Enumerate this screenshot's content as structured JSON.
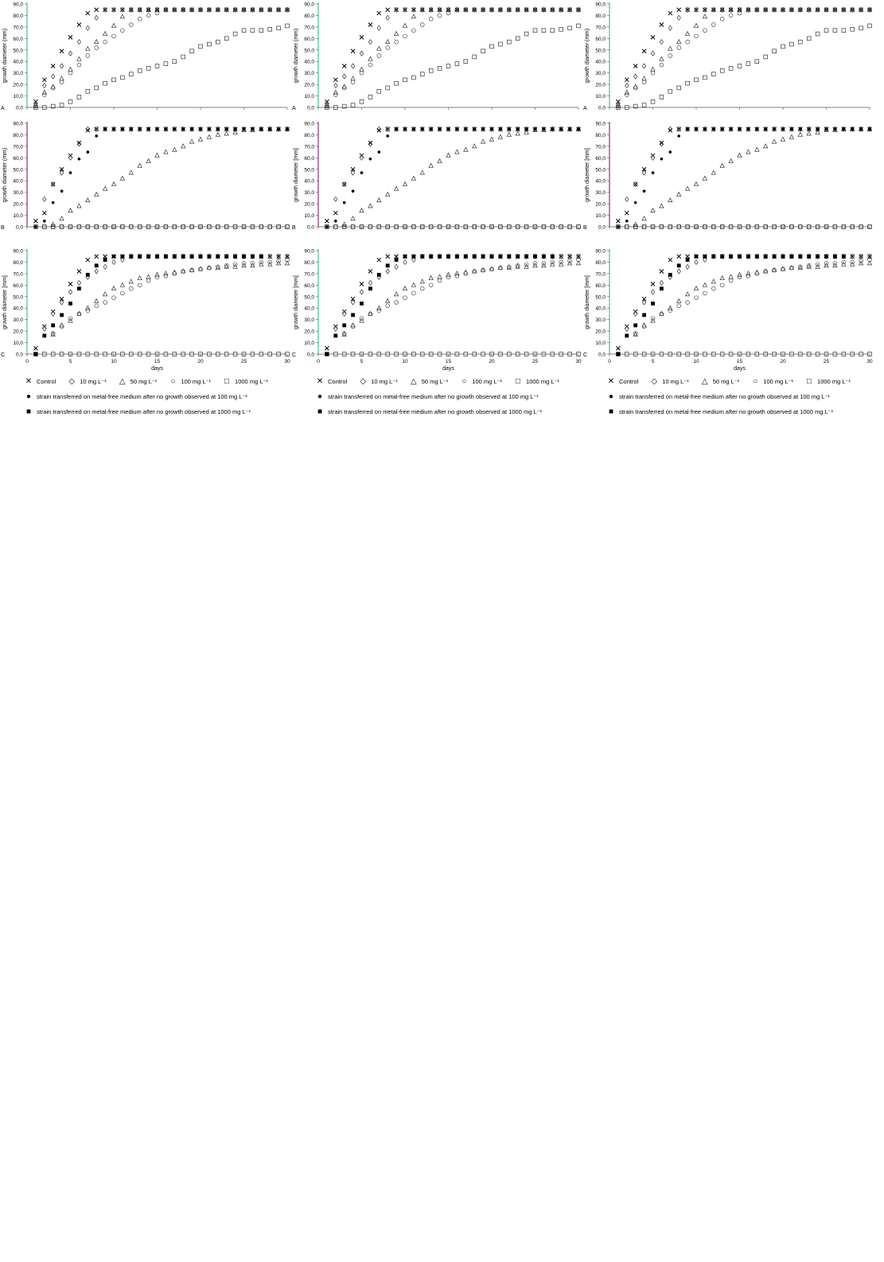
{
  "chart_data": {
    "type": "scatter",
    "layout": "3x3 grid",
    "xlabel": "days",
    "ylabel": "growth diameter (mm)",
    "ylabel_variant": "growth diameter [mm]",
    "xlim": [
      0,
      30
    ],
    "ylim": [
      0,
      90
    ],
    "xticks": [
      "0",
      "5",
      "10",
      "15",
      "20",
      "25",
      "30"
    ],
    "yticks": [
      "0,0",
      "10,0",
      "20,0",
      "30,0",
      "40,0",
      "50,0",
      "60,0",
      "70,0",
      "80,0",
      "90,0"
    ],
    "row_labels": [
      "A",
      "B",
      "C"
    ],
    "frame_colors": [
      "#3cc98a",
      "#9c2a7e",
      "#3cc98a"
    ],
    "legend": {
      "items": [
        {
          "symbol": "x-icon",
          "label": "Control"
        },
        {
          "symbol": "diamond-icon",
          "label": "10 mg L⁻¹"
        },
        {
          "symbol": "triangle-icon",
          "label": "50 mg L⁻¹"
        },
        {
          "symbol": "circle-icon",
          "label": "100 mg L⁻¹"
        },
        {
          "symbol": "square-open-icon",
          "label": "1000 mg L⁻¹"
        }
      ],
      "transfer_100": "strain transferred on metal-free medium after no growth observed at 100 mg L⁻¹",
      "transfer_1000": "strain transferred on metal-free medium after no growth observed at 1000 mg L⁻¹"
    },
    "rows": [
      {
        "label": "A",
        "x": [
          1,
          2,
          3,
          4,
          5,
          6,
          7,
          8,
          9,
          10,
          11,
          12,
          13,
          14,
          15,
          16,
          17,
          18,
          19,
          20,
          21,
          22,
          23,
          24,
          25,
          26,
          27,
          28,
          29,
          30
        ],
        "series": [
          {
            "name": "Control",
            "marker": "x",
            "values": [
              5,
              24,
              36,
              49,
              61,
              72,
              82,
              85,
              85,
              85,
              85,
              85,
              85,
              85,
              85,
              85,
              85,
              85,
              85,
              85,
              85,
              85,
              85,
              85,
              85,
              85,
              85,
              85,
              85,
              85
            ]
          },
          {
            "name": "10 mg L⁻¹",
            "marker": "diamond",
            "values": [
              3,
              19,
              27,
              36,
              47,
              57,
              69,
              78,
              85,
              85,
              85,
              85,
              85,
              85,
              85,
              85,
              85,
              85,
              85,
              85,
              85,
              85,
              85,
              85,
              85,
              85,
              85,
              85,
              85,
              85
            ]
          },
          {
            "name": "50 mg L⁻¹",
            "marker": "triangle",
            "values": [
              2,
              13,
              18,
              25,
              33,
              42,
              51,
              57,
              64,
              71,
              79,
              85,
              85,
              85,
              85,
              85,
              85,
              85,
              85,
              85,
              85,
              85,
              85,
              85,
              85,
              85,
              85,
              85,
              85,
              85
            ]
          },
          {
            "name": "100 mg L⁻¹",
            "marker": "circle",
            "values": [
              1,
              11,
              17,
              22,
              30,
              37,
              45,
              52,
              57,
              62,
              67,
              72,
              77,
              80,
              82,
              85,
              85,
              85,
              85,
              85,
              85,
              85,
              85,
              85,
              85,
              85,
              85,
              85,
              85,
              85
            ]
          },
          {
            "name": "1000 mg L⁻¹",
            "marker": "square-open",
            "values": [
              0,
              0,
              1,
              2,
              5,
              9,
              14,
              17,
              21,
              24,
              26,
              29,
              32,
              34,
              36,
              38,
              40,
              44,
              49,
              53,
              55,
              57,
              60,
              64,
              67,
              67,
              67,
              68,
              69,
              71
            ]
          }
        ]
      },
      {
        "label": "B",
        "x": [
          1,
          2,
          3,
          4,
          5,
          6,
          7,
          8,
          9,
          10,
          11,
          12,
          13,
          14,
          15,
          16,
          17,
          18,
          19,
          20,
          21,
          22,
          23,
          24,
          25,
          26,
          27,
          28,
          29,
          30
        ],
        "series": [
          {
            "name": "Control",
            "marker": "x",
            "values": [
              5,
              12,
              37,
              50,
              62,
              73,
              84,
              85,
              85,
              85,
              85,
              85,
              85,
              85,
              85,
              85,
              85,
              85,
              85,
              85,
              85,
              85,
              85,
              85,
              85,
              85,
              85,
              85,
              85,
              85
            ]
          },
          {
            "name": "10 mg L⁻¹",
            "marker": "diamond",
            "values": [
              null,
              24,
              37,
              47,
              60,
              72,
              85,
              85,
              85,
              85,
              85,
              85,
              85,
              85,
              85,
              85,
              85,
              85,
              85,
              85,
              85,
              85,
              85,
              85,
              85,
              85,
              85,
              85,
              85,
              85
            ]
          },
          {
            "name": "50 mg L⁻¹",
            "marker": "triangle",
            "values": [
              null,
              null,
              2,
              7,
              14,
              18,
              23,
              28,
              33,
              37,
              42,
              47,
              53,
              57,
              62,
              65,
              67,
              70,
              74,
              76,
              78,
              80,
              81,
              82,
              84,
              84,
              85,
              85,
              85,
              85
            ]
          },
          {
            "name": "100 mg L⁻¹",
            "marker": "circle",
            "values": [
              0,
              0,
              0,
              0,
              0,
              0,
              0,
              0,
              0,
              0,
              0,
              0,
              0,
              0,
              0,
              0,
              0,
              0,
              0,
              0,
              0,
              0,
              0,
              0,
              0,
              0,
              0,
              0,
              0,
              0
            ]
          },
          {
            "name": "1000 mg L⁻¹",
            "marker": "square-open",
            "values": [
              0,
              0,
              0,
              0,
              0,
              0,
              0,
              0,
              0,
              0,
              0,
              0,
              0,
              0,
              0,
              0,
              0,
              0,
              0,
              0,
              0,
              0,
              0,
              0,
              0,
              0,
              0,
              0,
              0,
              0
            ]
          },
          {
            "name": "strain transferred on metal-free medium after no growth observed at 100 mg L⁻¹",
            "marker": "dot",
            "values": [
              0,
              5,
              21,
              31,
              47,
              59,
              65,
              79,
              85,
              85,
              85,
              85,
              85,
              85,
              85,
              85,
              85,
              85,
              85,
              85,
              85,
              85,
              85,
              85,
              85,
              85,
              85,
              85,
              85,
              85
            ]
          }
        ]
      },
      {
        "label": "C",
        "x": [
          1,
          2,
          3,
          4,
          5,
          6,
          7,
          8,
          9,
          10,
          11,
          12,
          13,
          14,
          15,
          16,
          17,
          18,
          19,
          20,
          21,
          22,
          23,
          24,
          25,
          26,
          27,
          28,
          29,
          30
        ],
        "series": [
          {
            "name": "Control",
            "marker": "x",
            "values": [
              5,
              24,
              37,
              48,
              61,
              72,
              82,
              85,
              85,
              85,
              85,
              85,
              85,
              85,
              85,
              85,
              85,
              85,
              85,
              85,
              85,
              85,
              85,
              85,
              85,
              85,
              85,
              85,
              85,
              85
            ]
          },
          {
            "name": "10 mg L⁻¹",
            "marker": "diamond",
            "values": [
              null,
              22,
              35,
              45,
              54,
              62,
              67,
              72,
              76,
              80,
              82,
              85,
              85,
              85,
              85,
              85,
              85,
              85,
              85,
              85,
              85,
              85,
              85,
              85,
              85,
              85,
              85,
              85,
              85,
              85
            ]
          },
          {
            "name": "50 mg L⁻¹",
            "marker": "triangle",
            "values": [
              null,
              null,
              17,
              25,
              29,
              35,
              40,
              46,
              52,
              57,
              60,
              63,
              66,
              67,
              69,
              70,
              71,
              72,
              73,
              74,
              75,
              75,
              76,
              76,
              77,
              77,
              78,
              78,
              79,
              79
            ]
          },
          {
            "name": "100 mg L⁻¹",
            "marker": "circle",
            "values": [
              null,
              null,
              18,
              24,
              31,
              35,
              38,
              42,
              45,
              49,
              53,
              57,
              60,
              64,
              67,
              68,
              70,
              72,
              73,
              74,
              75,
              76,
              77,
              78,
              79,
              79,
              80,
              80,
              81,
              82
            ]
          },
          {
            "name": "1000 mg L⁻¹",
            "marker": "square-open",
            "values": [
              0,
              0,
              0,
              0,
              0,
              0,
              0,
              0,
              0,
              0,
              0,
              0,
              0,
              0,
              0,
              0,
              0,
              0,
              0,
              0,
              0,
              0,
              0,
              0,
              0,
              0,
              0,
              0,
              0,
              0
            ]
          },
          {
            "name": "strain transferred on metal-free medium after no growth observed at 1000 mg L⁻¹",
            "marker": "square-filled",
            "values": [
              0,
              16,
              25,
              34,
              44,
              57,
              69,
              77,
              82,
              85,
              85,
              85,
              85,
              85,
              85,
              85,
              85,
              85,
              85,
              85,
              85,
              85,
              85,
              85,
              85,
              85,
              85,
              null,
              null,
              null
            ]
          }
        ]
      }
    ]
  }
}
